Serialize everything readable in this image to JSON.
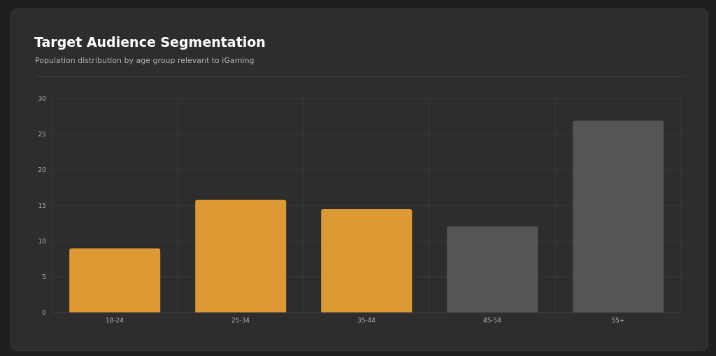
{
  "chart_data": {
    "type": "bar",
    "title": "Target Audience Segmentation",
    "subtitle": "Population distribution by age group relevant to iGaming",
    "categories": [
      "18-24",
      "25-34",
      "35-44",
      "45-54",
      "55+"
    ],
    "values": [
      9.0,
      15.8,
      14.5,
      12.1,
      26.9
    ],
    "colors": [
      "#dd9933",
      "#dd9933",
      "#dd9933",
      "#555555",
      "#555555"
    ],
    "ylim": [
      0,
      30
    ],
    "yticks": [
      0,
      5,
      10,
      15,
      20,
      25,
      30
    ],
    "grid": true,
    "legend": false
  }
}
